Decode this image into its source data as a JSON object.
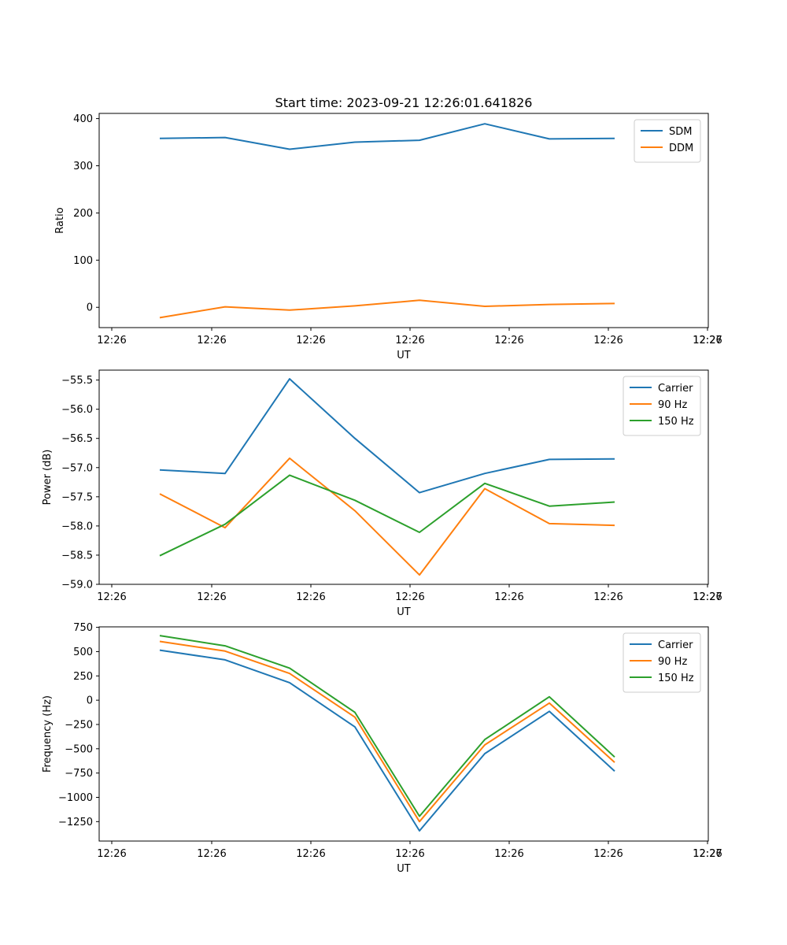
{
  "figure_title": "Start time: 2023-09-21 12:26:01.641826",
  "chart_data": [
    {
      "type": "line",
      "title": "Start time: 2023-09-21 12:26:01.641826",
      "xlabel": "UT",
      "ylabel": "Ratio",
      "x_tick_labels": [
        "12:26",
        "12:26",
        "12:26",
        "12:26",
        "12:26",
        "12:26",
        "12:26",
        "12:27"
      ],
      "ylim": [
        -43,
        411
      ],
      "y_ticks": [
        0,
        100,
        200,
        300,
        400
      ],
      "legend_position": "top-right",
      "series": [
        {
          "name": "SDM",
          "color": "#1f77b4",
          "values": [
            358,
            360,
            335,
            350,
            354,
            389,
            357,
            358
          ]
        },
        {
          "name": "DDM",
          "color": "#ff7f0e",
          "values": [
            -22,
            1,
            -6,
            3,
            15,
            2,
            6,
            8
          ]
        }
      ]
    },
    {
      "type": "line",
      "title": "",
      "xlabel": "UT",
      "ylabel": "Power (dB)",
      "x_tick_labels": [
        "12:26",
        "12:26",
        "12:26",
        "12:26",
        "12:26",
        "12:26",
        "12:26",
        "12:27"
      ],
      "ylim": [
        -59.0,
        -55.33
      ],
      "y_ticks": [
        -59.0,
        -58.5,
        -58.0,
        -57.5,
        -57.0,
        -56.5,
        -56.0,
        -55.5
      ],
      "legend_position": "top-right",
      "series": [
        {
          "name": "Carrier",
          "color": "#1f77b4",
          "values": [
            -57.04,
            -57.1,
            -55.48,
            -56.5,
            -57.43,
            -57.1,
            -56.86,
            -56.85
          ]
        },
        {
          "name": "90 Hz",
          "color": "#ff7f0e",
          "values": [
            -57.45,
            -58.03,
            -56.84,
            -57.74,
            -58.84,
            -57.36,
            -57.96,
            -57.99
          ]
        },
        {
          "name": "150 Hz",
          "color": "#2ca02c",
          "values": [
            -58.51,
            -57.97,
            -57.13,
            -57.56,
            -58.11,
            -57.27,
            -57.66,
            -57.59
          ]
        }
      ]
    },
    {
      "type": "line",
      "title": "",
      "xlabel": "UT",
      "ylabel": "Frequency (Hz)",
      "x_tick_labels": [
        "12:26",
        "12:26",
        "12:26",
        "12:26",
        "12:26",
        "12:26",
        "12:26",
        "12:27"
      ],
      "ylim": [
        -1450,
        755
      ],
      "y_ticks": [
        -1250,
        -1000,
        -750,
        -500,
        -250,
        0,
        250,
        500,
        750
      ],
      "legend_position": "top-right",
      "series": [
        {
          "name": "Carrier",
          "color": "#1f77b4",
          "values": [
            515,
            415,
            180,
            -275,
            -1345,
            -550,
            -115,
            -730
          ]
        },
        {
          "name": "90 Hz",
          "color": "#ff7f0e",
          "values": [
            605,
            505,
            275,
            -175,
            -1250,
            -460,
            -30,
            -640
          ]
        },
        {
          "name": "150 Hz",
          "color": "#2ca02c",
          "values": [
            665,
            560,
            330,
            -125,
            -1195,
            -405,
            35,
            -585
          ]
        }
      ]
    }
  ]
}
